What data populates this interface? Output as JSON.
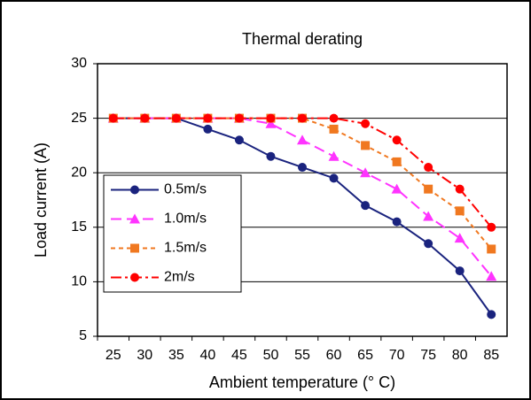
{
  "chart_data": {
    "type": "line",
    "title": "Thermal derating",
    "x_label": "Ambient temperature (° C)",
    "y_label": "Load current (A)",
    "categories": [
      25,
      30,
      35,
      40,
      45,
      50,
      55,
      60,
      65,
      70,
      75,
      80,
      85
    ],
    "ylim": [
      5,
      30
    ],
    "yticks": [
      5,
      10,
      15,
      20,
      25,
      30
    ],
    "grid": true,
    "legend": "left",
    "series": [
      {
        "name": "0.5m/s",
        "color": "#1a237e",
        "marker": "circle",
        "dash": "solid",
        "values": [
          25,
          25,
          25,
          24,
          23,
          21.5,
          20.5,
          19.5,
          17,
          15.5,
          13.5,
          11,
          7
        ]
      },
      {
        "name": "1.0m/s",
        "color": "#ff33ff",
        "marker": "triangle",
        "dash": "dash",
        "values": [
          25,
          25,
          25,
          25,
          25,
          24.5,
          23,
          21.5,
          20,
          18.5,
          16,
          14,
          10.5
        ]
      },
      {
        "name": "1.5m/s",
        "color": "#f07820",
        "marker": "square",
        "dash": "dot",
        "values": [
          25,
          25,
          25,
          25,
          25,
          25,
          25,
          24,
          22.5,
          21,
          18.5,
          16.5,
          13
        ]
      },
      {
        "name": "2m/s",
        "color": "#ff0000",
        "marker": "circle",
        "dash": "dashdot",
        "values": [
          25,
          25,
          25,
          25,
          25,
          25,
          25,
          25,
          24.5,
          23,
          20.5,
          18.5,
          15
        ]
      }
    ]
  }
}
